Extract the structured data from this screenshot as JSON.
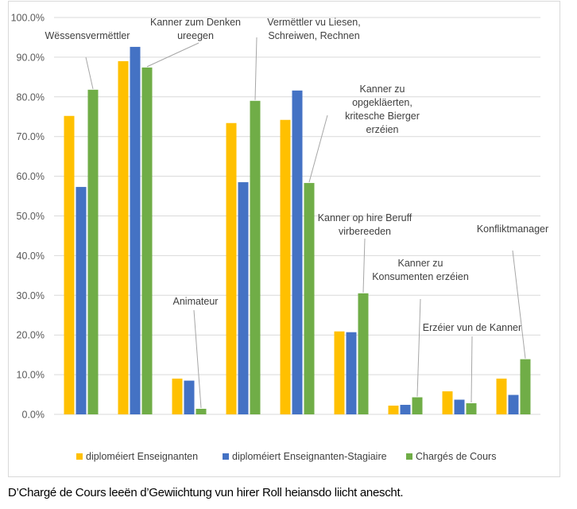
{
  "chart_data": {
    "type": "bar",
    "title": "",
    "xlabel": "",
    "ylabel": "",
    "ylim": [
      0,
      100
    ],
    "ytick_step": 10,
    "ytick_labels": [
      "0.0%",
      "10.0%",
      "20.0%",
      "30.0%",
      "40.0%",
      "50.0%",
      "60.0%",
      "70.0%",
      "80.0%",
      "90.0%",
      "100.0%"
    ],
    "grid": true,
    "legend_position": "bottom",
    "categories": [
      "Wëssensvermëttler",
      "Kanner zum Denken ureegen",
      "Animateur",
      "Vermëttler vu Liesen, Schreiwen, Rechnen",
      "Kanner zu opgekläerten, kritesche Bierger erzéien",
      "Kanner op hire Beruff virbereeden",
      "Kanner zu Konsumenten erzéien",
      "Erzéier vun de Kanner",
      "Konfliktmanager"
    ],
    "series": [
      {
        "name": "diploméiert Enseignanten",
        "color": "#FFC000",
        "values": [
          75.2,
          89.0,
          9.0,
          73.4,
          74.2,
          20.9,
          2.2,
          5.8,
          9.0
        ]
      },
      {
        "name": "diploméiert Enseignanten-Stagiaire",
        "color": "#4472C4",
        "values": [
          57.3,
          92.6,
          8.5,
          58.5,
          81.6,
          20.7,
          2.4,
          3.7,
          4.9
        ]
      },
      {
        "name": "Chargés de Cours",
        "color": "#70AD47",
        "values": [
          81.8,
          87.4,
          1.4,
          79.0,
          58.3,
          30.5,
          4.3,
          2.8,
          13.9
        ]
      }
    ],
    "annotations": [
      {
        "lines": [
          "Wëssensvermëttler"
        ]
      },
      {
        "lines": [
          "Kanner zum Denken",
          "ureegen"
        ]
      },
      {
        "lines": [
          "Animateur"
        ]
      },
      {
        "lines": [
          "Vermëttler vu Liesen,",
          "Schreiwen, Rechnen"
        ]
      },
      {
        "lines": [
          "Kanner zu",
          "opgekläerten,",
          "kritesche Bierger",
          "erzéien"
        ]
      },
      {
        "lines": [
          "Kanner op hire Beruff",
          "virbereeden"
        ]
      },
      {
        "lines": [
          "Kanner zu",
          "Konsumenten erzéien"
        ]
      },
      {
        "lines": [
          "Erzéier vun de Kanner"
        ]
      },
      {
        "lines": [
          "Konfliktmanager"
        ]
      }
    ]
  },
  "caption": "D’Chargé de Cours leeën d’Gewiichtung vun hirer Roll heiansdo liicht anescht."
}
